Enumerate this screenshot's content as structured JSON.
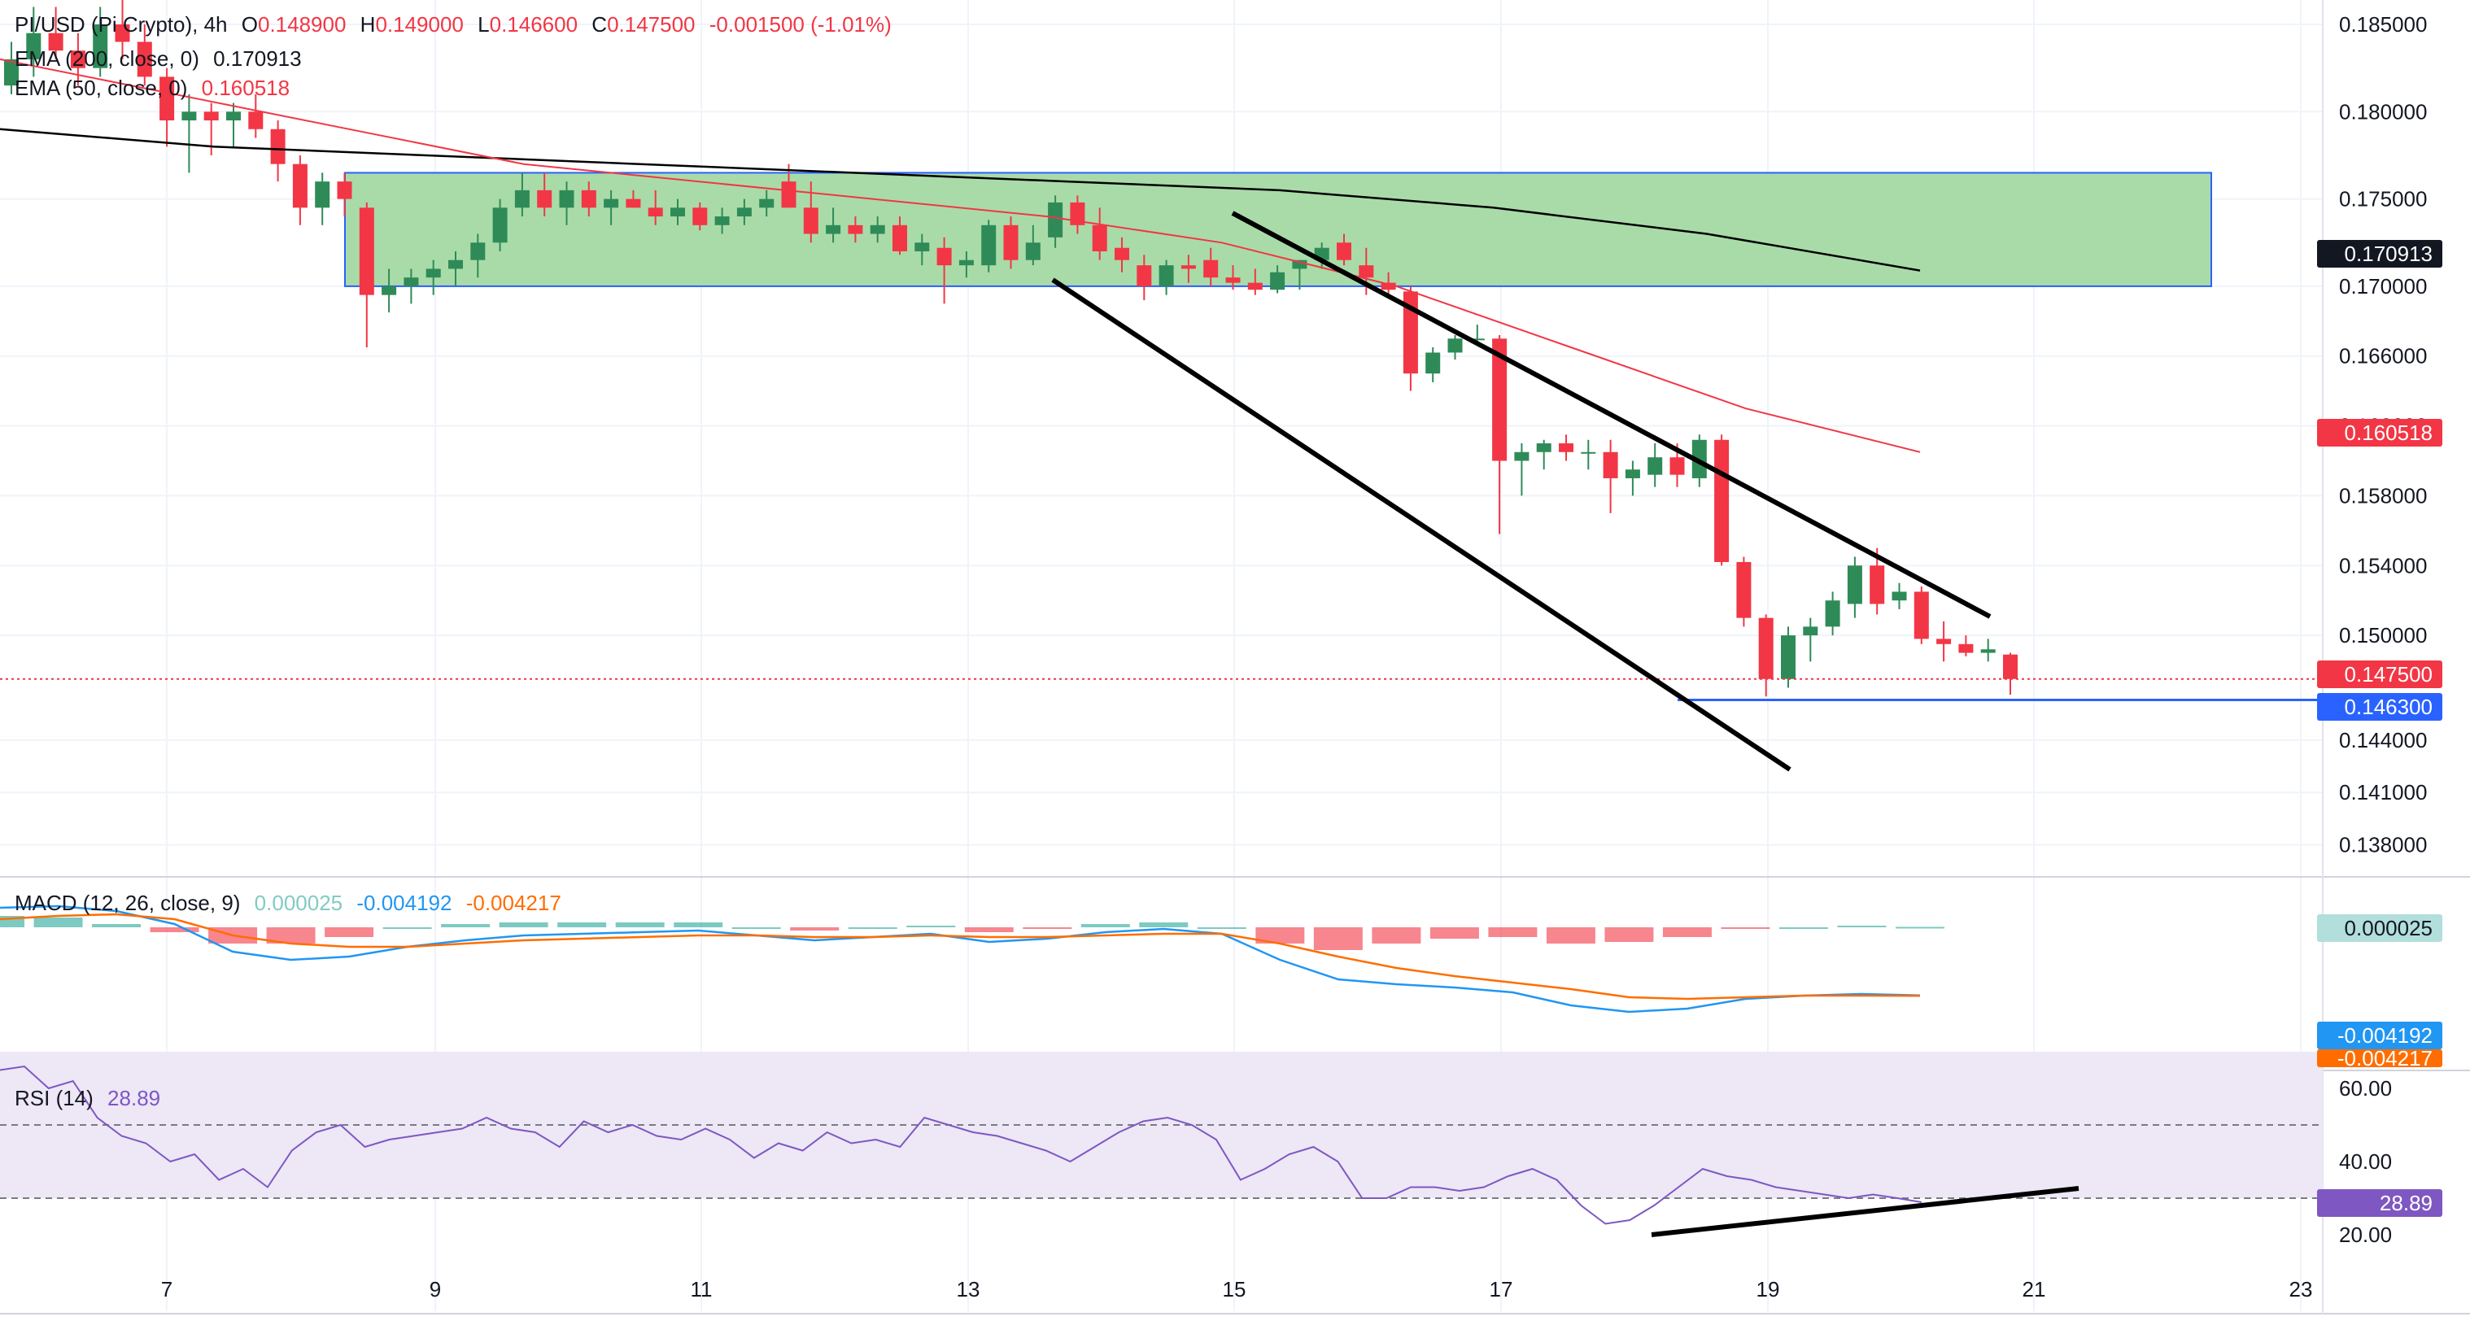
{
  "colors": {
    "up": "#26a69a",
    "up_candle": "#2e8b57",
    "down": "#f23645",
    "ema200": "#000000",
    "ema50": "#f23645",
    "zone_fill": "#a9dba8",
    "zone_stroke": "#2962ff",
    "support": "#2962ff",
    "macd": "#2196f3",
    "signal": "#ff6d00",
    "rsi": "#7e57c2",
    "rsi_band": "#ede7f6",
    "grid": "#f0f3fa"
  },
  "header": {
    "symbol": "PI/USD (Pi Crypto), 4h",
    "o_label": "O",
    "o": "0.148900",
    "h_label": "H",
    "h": "0.149000",
    "l_label": "L",
    "l": "0.146600",
    "c_label": "C",
    "c": "0.147500",
    "change": "-0.001500 (-1.01%)",
    "ema200_label": "EMA (200, close, 0)",
    "ema200_value": "0.170913",
    "ema50_label": "EMA (50, close, 0)",
    "ema50_value": "0.160518",
    "macd_label": "MACD (12, 26, close, 9)",
    "macd_hist": "0.000025",
    "macd_line": "-0.004192",
    "macd_signal": "-0.004217",
    "rsi_label": "RSI (14)",
    "rsi_value": "28.89"
  },
  "tags": {
    "ema200": "0.170913",
    "ema50": "0.160518",
    "last": "0.147500",
    "support": "0.146300",
    "macd_hist": "0.000025",
    "macd_line": "-0.004192",
    "macd_signal": "-0.004217",
    "rsi": "28.89"
  },
  "chart_data": {
    "type": "candlestick",
    "timeframe": "4h",
    "price_ticks": [
      "0.185000",
      "0.180000",
      "0.175000",
      "0.170000",
      "0.166000",
      "0.162000",
      "0.158000",
      "0.154000",
      "0.150000",
      "0.144000",
      "0.141000",
      "0.138000"
    ],
    "date_ticks": [
      "7",
      "9",
      "11",
      "13",
      "15",
      "17",
      "19",
      "21",
      "23"
    ],
    "rsi_ticks": [
      "60.00",
      "40.00",
      "20.00"
    ],
    "candles": [
      [
        0.1815,
        0.184,
        0.181,
        0.183
      ],
      [
        0.183,
        0.186,
        0.182,
        0.1845
      ],
      [
        0.1845,
        0.186,
        0.183,
        0.1835
      ],
      [
        0.1835,
        0.1845,
        0.1815,
        0.1825
      ],
      [
        0.1825,
        0.186,
        0.182,
        0.185
      ],
      [
        0.185,
        0.187,
        0.183,
        0.184
      ],
      [
        0.184,
        0.185,
        0.1815,
        0.182
      ],
      [
        0.182,
        0.1825,
        0.178,
        0.1795
      ],
      [
        0.1795,
        0.181,
        0.1765,
        0.18
      ],
      [
        0.18,
        0.1805,
        0.1775,
        0.1795
      ],
      [
        0.1795,
        0.1805,
        0.178,
        0.18
      ],
      [
        0.18,
        0.181,
        0.1785,
        0.179
      ],
      [
        0.179,
        0.1795,
        0.176,
        0.177
      ],
      [
        0.177,
        0.1775,
        0.1735,
        0.1745
      ],
      [
        0.1745,
        0.1765,
        0.1735,
        0.176
      ],
      [
        0.176,
        0.1765,
        0.174,
        0.175
      ],
      [
        0.1745,
        0.1748,
        0.1665,
        0.1695
      ],
      [
        0.1695,
        0.171,
        0.1685,
        0.17
      ],
      [
        0.17,
        0.171,
        0.169,
        0.1705
      ],
      [
        0.1705,
        0.1715,
        0.1695,
        0.171
      ],
      [
        0.171,
        0.172,
        0.17,
        0.1715
      ],
      [
        0.1715,
        0.173,
        0.1705,
        0.1725
      ],
      [
        0.1725,
        0.175,
        0.172,
        0.1745
      ],
      [
        0.1745,
        0.1765,
        0.174,
        0.1755
      ],
      [
        0.1755,
        0.1765,
        0.174,
        0.1745
      ],
      [
        0.1745,
        0.176,
        0.1735,
        0.1755
      ],
      [
        0.1755,
        0.176,
        0.174,
        0.1745
      ],
      [
        0.1745,
        0.1755,
        0.1735,
        0.175
      ],
      [
        0.175,
        0.1755,
        0.1745,
        0.1745
      ],
      [
        0.1745,
        0.1755,
        0.1735,
        0.174
      ],
      [
        0.174,
        0.175,
        0.1735,
        0.1745
      ],
      [
        0.1745,
        0.1748,
        0.1732,
        0.1735
      ],
      [
        0.1735,
        0.1745,
        0.173,
        0.174
      ],
      [
        0.174,
        0.175,
        0.1735,
        0.1745
      ],
      [
        0.1745,
        0.1755,
        0.174,
        0.175
      ],
      [
        0.176,
        0.177,
        0.1745,
        0.1745
      ],
      [
        0.1745,
        0.176,
        0.1725,
        0.173
      ],
      [
        0.173,
        0.1745,
        0.1725,
        0.1735
      ],
      [
        0.1735,
        0.174,
        0.1725,
        0.173
      ],
      [
        0.173,
        0.174,
        0.1725,
        0.1735
      ],
      [
        0.1735,
        0.174,
        0.1718,
        0.172
      ],
      [
        0.172,
        0.173,
        0.1712,
        0.1725
      ],
      [
        0.1722,
        0.1728,
        0.169,
        0.1712
      ],
      [
        0.1712,
        0.172,
        0.1705,
        0.1715
      ],
      [
        0.1712,
        0.1738,
        0.1708,
        0.1735
      ],
      [
        0.1735,
        0.174,
        0.171,
        0.1715
      ],
      [
        0.1715,
        0.1735,
        0.1712,
        0.1725
      ],
      [
        0.1728,
        0.1752,
        0.1722,
        0.1748
      ],
      [
        0.1748,
        0.1752,
        0.173,
        0.1735
      ],
      [
        0.1735,
        0.1745,
        0.1715,
        0.172
      ],
      [
        0.1722,
        0.1728,
        0.1708,
        0.1715
      ],
      [
        0.1712,
        0.1718,
        0.1692,
        0.17
      ],
      [
        0.17,
        0.1715,
        0.1695,
        0.1712
      ],
      [
        0.1712,
        0.1718,
        0.1702,
        0.171
      ],
      [
        0.1715,
        0.1722,
        0.17,
        0.1705
      ],
      [
        0.1705,
        0.1712,
        0.1698,
        0.1702
      ],
      [
        0.1702,
        0.171,
        0.1695,
        0.1698
      ],
      [
        0.1698,
        0.1712,
        0.1696,
        0.1708
      ],
      [
        0.171,
        0.1715,
        0.1698,
        0.1715
      ],
      [
        0.1715,
        0.1725,
        0.171,
        0.1722
      ],
      [
        0.1725,
        0.173,
        0.1712,
        0.1715
      ],
      [
        0.1712,
        0.1722,
        0.1695,
        0.1705
      ],
      [
        0.1702,
        0.1708,
        0.1695,
        0.1698
      ],
      [
        0.1697,
        0.17,
        0.164,
        0.165
      ],
      [
        0.165,
        0.1665,
        0.1645,
        0.1662
      ],
      [
        0.1662,
        0.1672,
        0.1658,
        0.167
      ],
      [
        0.167,
        0.1678,
        0.1668,
        0.167
      ],
      [
        0.167,
        0.1672,
        0.1558,
        0.16
      ],
      [
        0.16,
        0.161,
        0.158,
        0.1605
      ],
      [
        0.1605,
        0.1612,
        0.1595,
        0.161
      ],
      [
        0.161,
        0.1615,
        0.16,
        0.1605
      ],
      [
        0.1605,
        0.1612,
        0.1595,
        0.1605
      ],
      [
        0.1605,
        0.1612,
        0.157,
        0.159
      ],
      [
        0.159,
        0.16,
        0.158,
        0.1595
      ],
      [
        0.1592,
        0.161,
        0.1585,
        0.1602
      ],
      [
        0.1602,
        0.161,
        0.1585,
        0.1592
      ],
      [
        0.159,
        0.1615,
        0.1585,
        0.1612
      ],
      [
        0.1612,
        0.1615,
        0.154,
        0.1542
      ],
      [
        0.1542,
        0.1545,
        0.1505,
        0.151
      ],
      [
        0.151,
        0.1512,
        0.1465,
        0.1475
      ],
      [
        0.1475,
        0.1505,
        0.147,
        0.15
      ],
      [
        0.15,
        0.151,
        0.1485,
        0.1505
      ],
      [
        0.1505,
        0.1525,
        0.15,
        0.152
      ],
      [
        0.1518,
        0.1545,
        0.151,
        0.154
      ],
      [
        0.154,
        0.155,
        0.1512,
        0.1518
      ],
      [
        0.152,
        0.153,
        0.1515,
        0.1525
      ],
      [
        0.1525,
        0.1528,
        0.1495,
        0.1498
      ],
      [
        0.1498,
        0.1508,
        0.1485,
        0.1495
      ],
      [
        0.1495,
        0.15,
        0.1488,
        0.149
      ],
      [
        0.149,
        0.1498,
        0.1485,
        0.1492
      ],
      [
        0.1489,
        0.149,
        0.1466,
        0.1475
      ]
    ],
    "ema200": [
      0.179,
      0.178,
      0.1775,
      0.177,
      0.1765,
      0.176,
      0.1755,
      0.1745,
      0.173,
      0.1709
    ],
    "ema50": [
      0.183,
      0.181,
      0.179,
      0.177,
      0.176,
      0.175,
      0.174,
      0.1725,
      0.17,
      0.1665,
      0.163,
      0.1605
    ],
    "support_level": 0.1463,
    "consolidation_zone": [
      0.17,
      0.1765
    ],
    "macd_line": [
      0.0012,
      0.0013,
      0.001,
      0.0002,
      -0.0015,
      -0.002,
      -0.0018,
      -0.0012,
      -0.0008,
      -0.0005,
      -0.0004,
      -0.0003,
      -0.0002,
      -0.0005,
      -0.0008,
      -0.0006,
      -0.0004,
      -0.0009,
      -0.0007,
      -0.0003,
      -0.0001,
      -0.0004,
      -0.002,
      -0.0032,
      -0.0035,
      -0.0037,
      -0.004,
      -0.0048,
      -0.0052,
      -0.005,
      -0.0044,
      -0.0042,
      -0.0041,
      -0.00419
    ],
    "macd_signal": [
      0.0005,
      0.0007,
      0.0008,
      0.0005,
      -0.0005,
      -0.001,
      -0.0012,
      -0.0012,
      -0.001,
      -0.0008,
      -0.0007,
      -0.0006,
      -0.0005,
      -0.0005,
      -0.0006,
      -0.0006,
      -0.0005,
      -0.0006,
      -0.0006,
      -0.0005,
      -0.0004,
      -0.0004,
      -0.001,
      -0.0018,
      -0.0025,
      -0.003,
      -0.0034,
      -0.0038,
      -0.0043,
      -0.0044,
      -0.0043,
      -0.0042,
      -0.0042,
      -0.004217
    ],
    "rsi": [
      65,
      66,
      60,
      62,
      52,
      47,
      45,
      40,
      42,
      35,
      38,
      33,
      43,
      48,
      50,
      44,
      46,
      47,
      48,
      49,
      52,
      49,
      48,
      44,
      51,
      48,
      50,
      47,
      46,
      49,
      46,
      41,
      45,
      43,
      48,
      45,
      46,
      44,
      52,
      50,
      48,
      47,
      45,
      43,
      40,
      44,
      48,
      51,
      52,
      50,
      46,
      35,
      38,
      42,
      44,
      40,
      30,
      30,
      33,
      33,
      32,
      33,
      36,
      38,
      35,
      28,
      23,
      24,
      28,
      33,
      38,
      36,
      35,
      33,
      32,
      31,
      30,
      31,
      30,
      28.89
    ],
    "rsi_levels": [
      50,
      30
    ]
  }
}
